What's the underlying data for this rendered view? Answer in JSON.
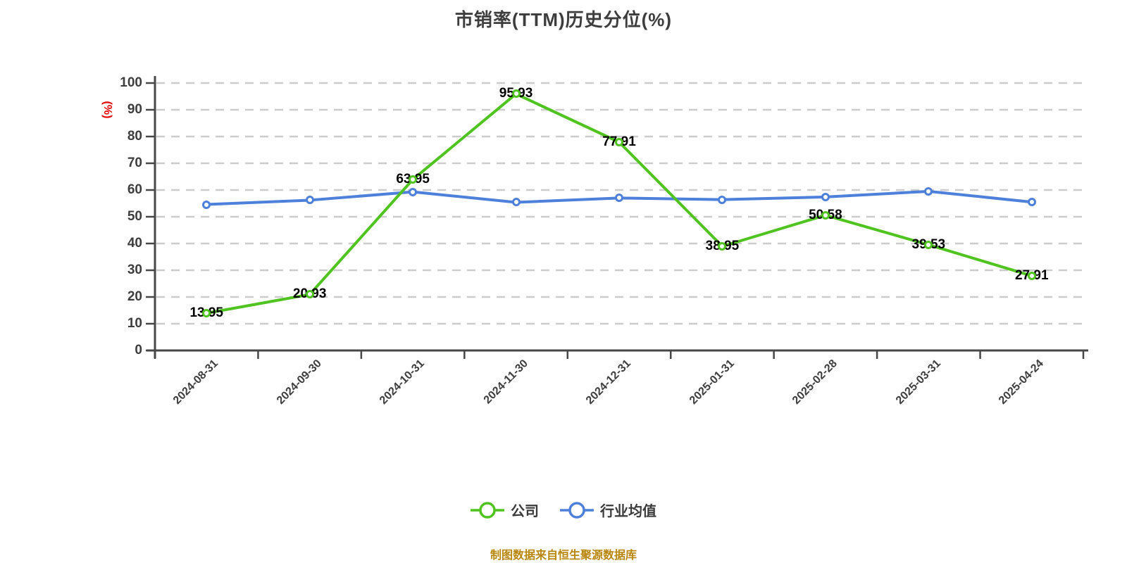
{
  "chart_data": {
    "type": "line",
    "title": "市销率(TTM)历史分位(%)",
    "ylabel": "(%)",
    "xlabel": "",
    "ylim": [
      0,
      100
    ],
    "ytick_step": 10,
    "grid": "horizontal-dashed",
    "legend_position": "bottom-center",
    "categories": [
      "2024-08-31",
      "2024-09-30",
      "2024-10-31",
      "2024-11-30",
      "2024-12-31",
      "2025-01-31",
      "2025-02-28",
      "2025-03-31",
      "2025-04-24"
    ],
    "series": [
      {
        "name": "行业均值",
        "color": "#4d80da",
        "marker": "circle-white-fill",
        "show_labels": false,
        "values": [
          54.6,
          56.2,
          59.3,
          55.4,
          57.0,
          56.4,
          57.4,
          59.5,
          55.5
        ]
      },
      {
        "name": "公司",
        "color": "#4fc31f",
        "marker": "circle-white-fill",
        "show_labels": true,
        "values": [
          13.95,
          20.93,
          63.95,
          95.93,
          77.91,
          38.95,
          50.58,
          39.53,
          27.91
        ]
      }
    ],
    "footnote": "制图数据来自恒生聚源数据库"
  },
  "colors": {
    "axis": "#474747",
    "grid": "#cccccc",
    "tick_label": "#3d3d3d",
    "title": "#3d3d3d",
    "data_label": "#000000",
    "y_unit_label": "#e60000",
    "legend_text": "#3a3a3a",
    "footnote": "#b8860b"
  }
}
